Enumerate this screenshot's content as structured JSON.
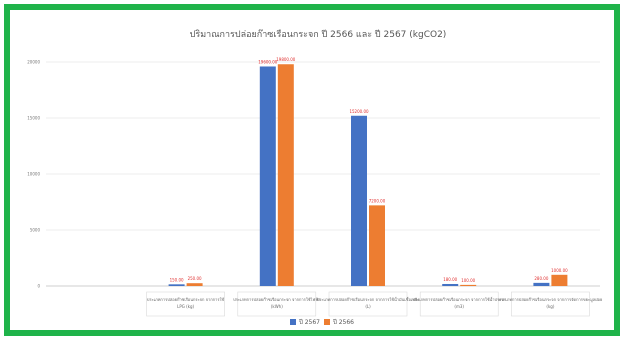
{
  "colors": {
    "border": "#1fb34a",
    "series_a": "#4472c4",
    "series_b": "#ed7d31",
    "data_label_red": "#e03030",
    "data_label_dark": "#595959"
  },
  "chart_data": {
    "type": "bar",
    "title": "ปริมาณการปล่อยก๊าซเรือนกระจก ปี 2566 และ ปี 2567 (kgCO2)",
    "categories": [
      "ประเภทการปล่อยก๊าซเรือนกระจก จากการใช้ LPG (kg)",
      "ประเภทการปล่อยก๊าซเรือนกระจก จากการใช้ไฟฟ้า (kWh)",
      "ประเภทการปล่อยก๊าซเรือนกระจก จากการใช้น้ำมันเชื้อเพลิง (L)",
      "ประเภทการปล่อยก๊าซเรือนกระจก จากการใช้น้ำประปา (m3)",
      "ประเภทการปล่อยก๊าซเรือนกระจก จากการจัดการขยะมูลฝอย (kg)"
    ],
    "series": [
      {
        "name": "ปี 2567",
        "values": [
          150.0,
          19600.0,
          15200.0,
          180.0,
          280.0
        ],
        "labels": [
          "150.00",
          "19600.00",
          "15200.00",
          "180.00",
          "280.00"
        ]
      },
      {
        "name": "ปี 2566",
        "values": [
          250.0,
          19800.0,
          7200.0,
          100.0,
          1000.0
        ],
        "labels": [
          "250.00",
          "19800.00",
          "7200.00",
          "100.00",
          "1000.00"
        ]
      }
    ],
    "yticks": [
      "0",
      "5000",
      "10000",
      "15000",
      "20000"
    ],
    "ylim": [
      0,
      20000
    ],
    "grid": true,
    "legend": "bottom"
  }
}
